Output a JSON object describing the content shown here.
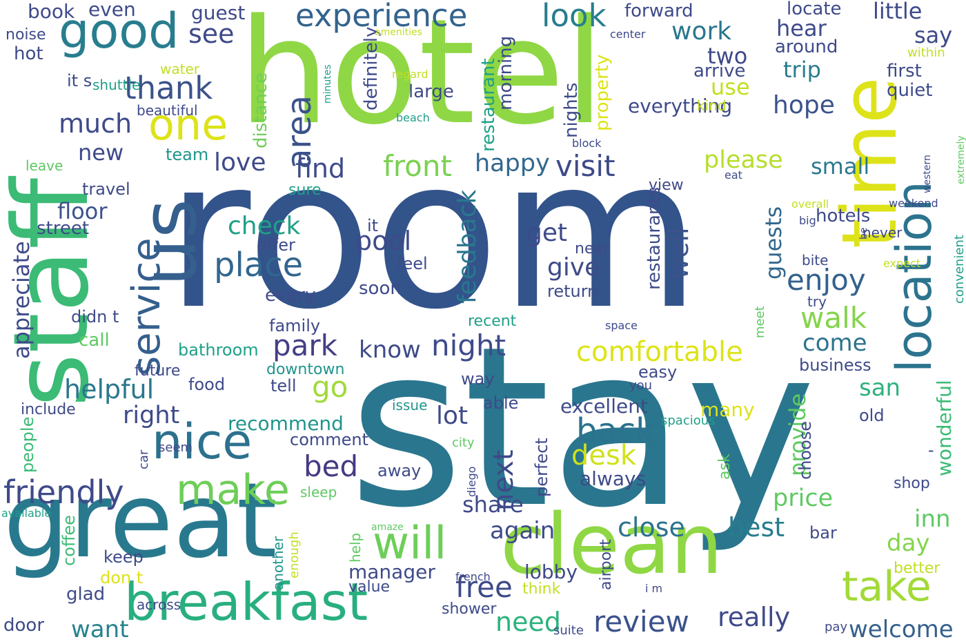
{
  "words": [
    {
      "text": "room",
      "color": "#33538b"
    },
    {
      "text": "stay",
      "color": "#2a768e"
    },
    {
      "text": "hotel",
      "color": "#8fd744"
    },
    {
      "text": "staff",
      "color": "#3bbb75"
    },
    {
      "text": "great",
      "color": "#29798e"
    },
    {
      "text": "clean",
      "color": "#8fd744"
    },
    {
      "text": "us",
      "color": "#355f8d"
    },
    {
      "text": "time",
      "color": "#dde318"
    },
    {
      "text": "breakfast",
      "color": "#29af7f"
    },
    {
      "text": "good",
      "color": "#287d8e"
    },
    {
      "text": "nice",
      "color": "#2c718e"
    },
    {
      "text": "location",
      "color": "#2c738e"
    },
    {
      "text": "service",
      "color": "#355f8d"
    },
    {
      "text": "will",
      "color": "#6ece58"
    },
    {
      "text": "make",
      "color": "#6ece58"
    },
    {
      "text": "take",
      "color": "#a2da37"
    },
    {
      "text": "one",
      "color": "#dde318"
    },
    {
      "text": "experience",
      "color": "#33638d"
    },
    {
      "text": "friendly",
      "color": "#3e4a89"
    },
    {
      "text": "thank",
      "color": "#3b528b"
    },
    {
      "text": "look",
      "color": "#287d8e"
    },
    {
      "text": "area",
      "color": "#3b528b"
    },
    {
      "text": "place",
      "color": "#31668e"
    },
    {
      "text": "comfortable",
      "color": "#dde318"
    },
    {
      "text": "back",
      "color": "#2c728e"
    },
    {
      "text": "review",
      "color": "#3b528b"
    },
    {
      "text": "front",
      "color": "#7ad151"
    },
    {
      "text": "park",
      "color": "#433e85"
    },
    {
      "text": "free",
      "color": "#3e4a89"
    },
    {
      "text": "close",
      "color": "#2c728e"
    },
    {
      "text": "best",
      "color": "#287c8e"
    },
    {
      "text": "bed",
      "color": "#443a83"
    },
    {
      "text": "night",
      "color": "#3e4a89"
    },
    {
      "text": "walk",
      "color": "#84d44b"
    },
    {
      "text": "enjoy",
      "color": "#34618d"
    },
    {
      "text": "visit",
      "color": "#3e4989"
    },
    {
      "text": "really",
      "color": "#3e4a89"
    },
    {
      "text": "need",
      "color": "#2db27d"
    },
    {
      "text": "desk",
      "color": "#d0e11c"
    },
    {
      "text": "next",
      "color": "#3e4989"
    },
    {
      "text": "see",
      "color": "#3e4a89"
    },
    {
      "text": "much",
      "color": "#3e4a89"
    },
    {
      "text": "find",
      "color": "#3e4a89"
    },
    {
      "text": "pool",
      "color": "#3e4a89"
    },
    {
      "text": "well",
      "color": "#3b528b"
    },
    {
      "text": "go",
      "color": "#a0da39"
    },
    {
      "text": "helpful",
      "color": "#2a788e"
    },
    {
      "text": "happy",
      "color": "#31688e"
    },
    {
      "text": "please",
      "color": "#b5de2b"
    },
    {
      "text": "price",
      "color": "#5ec962"
    },
    {
      "text": "welcome",
      "color": "#35608d"
    },
    {
      "text": "work",
      "color": "#2a768e"
    },
    {
      "text": "hope",
      "color": "#3b528b"
    },
    {
      "text": "feedback",
      "color": "#2a778e"
    },
    {
      "text": "check",
      "color": "#1fa088"
    },
    {
      "text": "give",
      "color": "#3e4a89"
    },
    {
      "text": "get",
      "color": "#3e4a89"
    },
    {
      "text": "love",
      "color": "#3e4a89"
    },
    {
      "text": "again",
      "color": "#3e4a89"
    },
    {
      "text": "lot",
      "color": "#3e4a89"
    },
    {
      "text": "right",
      "color": "#3e4a89"
    },
    {
      "text": "want",
      "color": "#26828e"
    },
    {
      "text": "know",
      "color": "#3e4a89"
    },
    {
      "text": "come",
      "color": "#2c728e"
    },
    {
      "text": "day",
      "color": "#84d44b"
    },
    {
      "text": "inn",
      "color": "#5ec962"
    },
    {
      "text": "san",
      "color": "#2db27d"
    },
    {
      "text": "small",
      "color": "#2a788e"
    },
    {
      "text": "new",
      "color": "#3e4a89"
    },
    {
      "text": "floor",
      "color": "#3b528b"
    },
    {
      "text": "appreciate",
      "color": "#3e4a89"
    },
    {
      "text": "use",
      "color": "#c2df23"
    },
    {
      "text": "trip",
      "color": "#287c8e"
    },
    {
      "text": "two",
      "color": "#3e4a89"
    },
    {
      "text": "hear",
      "color": "#3e4a89"
    },
    {
      "text": "little",
      "color": "#3e4a89"
    },
    {
      "text": "say",
      "color": "#3e4a89"
    },
    {
      "text": "provide",
      "color": "#5ec962"
    },
    {
      "text": "guests",
      "color": "#31688e"
    },
    {
      "text": "share",
      "color": "#3e4a89"
    },
    {
      "text": "recommend",
      "color": "#1f958b"
    },
    {
      "text": "excellent",
      "color": "#3e4a89"
    },
    {
      "text": "everything",
      "color": "#3e4a89"
    },
    {
      "text": "many",
      "color": "#dde318"
    },
    {
      "text": "manager",
      "color": "#3e4a89"
    },
    {
      "text": "lobby",
      "color": "#3e4a89"
    },
    {
      "text": "always",
      "color": "#3e4a89"
    },
    {
      "text": "wonderful",
      "color": "#3bbb75"
    },
    {
      "text": "book",
      "color": "#3e4a89"
    },
    {
      "text": "even",
      "color": "#3e4a89"
    },
    {
      "text": "guest",
      "color": "#3e4a89"
    },
    {
      "text": "forward",
      "color": "#3e4a89"
    },
    {
      "text": "locate",
      "color": "#3e4a89"
    },
    {
      "text": "around",
      "color": "#3e4a89"
    },
    {
      "text": "first",
      "color": "#3e4a89"
    },
    {
      "text": "quiet",
      "color": "#3e4a89"
    },
    {
      "text": "arrive",
      "color": "#3e4a89"
    },
    {
      "text": "hotels",
      "color": "#3e4a89"
    },
    {
      "text": "restaurants",
      "color": "#3e4a89"
    },
    {
      "text": "definitely",
      "color": "#3e4a89"
    },
    {
      "text": "restaurant",
      "color": "#1fa088"
    },
    {
      "text": "morning",
      "color": "#3e4a89"
    },
    {
      "text": "large",
      "color": "#3e4a89"
    },
    {
      "text": "nights",
      "color": "#3e4a89"
    },
    {
      "text": "property",
      "color": "#dde318"
    },
    {
      "text": "distance",
      "color": "#6ece58"
    },
    {
      "text": "street",
      "color": "#3e4a89"
    },
    {
      "text": "offer",
      "color": "#3e4a89"
    },
    {
      "text": "feel",
      "color": "#3e4a89"
    },
    {
      "text": "soon",
      "color": "#3e4a89"
    },
    {
      "text": "every",
      "color": "#3e4a89"
    },
    {
      "text": "didn t",
      "color": "#3e4a89"
    },
    {
      "text": "family",
      "color": "#3e4a89"
    },
    {
      "text": "call",
      "color": "#5ec962"
    },
    {
      "text": "bathroom",
      "color": "#1fa088"
    },
    {
      "text": "downtown",
      "color": "#1f958b"
    },
    {
      "text": "future",
      "color": "#3e4a89"
    },
    {
      "text": "food",
      "color": "#3e4a89"
    },
    {
      "text": "tell",
      "color": "#3e4a89"
    },
    {
      "text": "include",
      "color": "#3e4a89"
    },
    {
      "text": "people",
      "color": "#3bbb75"
    },
    {
      "text": "car",
      "color": "#3e4a89"
    },
    {
      "text": "seem",
      "color": "#3e4a89"
    },
    {
      "text": "comment",
      "color": "#3e4a89"
    },
    {
      "text": "recent",
      "color": "#1fa088"
    },
    {
      "text": "way",
      "color": "#3e4a89"
    },
    {
      "text": "easy",
      "color": "#3e4a89"
    },
    {
      "text": "able",
      "color": "#3e4a89"
    },
    {
      "text": "perfect",
      "color": "#3e4a89"
    },
    {
      "text": "away",
      "color": "#3e4a89"
    },
    {
      "text": "return",
      "color": "#3e4a89"
    },
    {
      "text": "near",
      "color": "#3e4a89"
    },
    {
      "text": "it",
      "color": "#3e4a89"
    },
    {
      "text": "it s",
      "color": "#3e4a89"
    },
    {
      "text": "noise",
      "color": "#3e4a89"
    },
    {
      "text": "hot",
      "color": "#3e4a89"
    },
    {
      "text": "shuttle",
      "color": "#1fa088"
    },
    {
      "text": "water",
      "color": "#c2df23"
    },
    {
      "text": "beautiful",
      "color": "#3e4a89"
    },
    {
      "text": "leave",
      "color": "#5ec962"
    },
    {
      "text": "team",
      "color": "#1f958b"
    },
    {
      "text": "travel",
      "color": "#3e4a89"
    },
    {
      "text": "sure",
      "color": "#1fa088"
    },
    {
      "text": "view",
      "color": "#3e4a89"
    },
    {
      "text": "kind",
      "color": "#c2df23"
    },
    {
      "text": "business",
      "color": "#3e4a89"
    },
    {
      "text": "choose",
      "color": "#3e4a89"
    },
    {
      "text": "ask",
      "color": "#5ec962"
    },
    {
      "text": "shop",
      "color": "#3e4a89"
    },
    {
      "text": "old",
      "color": "#3e4a89"
    },
    {
      "text": "bar",
      "color": "#3e4a89"
    },
    {
      "text": "better",
      "color": "#c2df23"
    },
    {
      "text": "suite",
      "color": "#3e4a89"
    },
    {
      "text": "pay",
      "color": "#3e4a89"
    },
    {
      "text": "i m",
      "color": "#3e4a89"
    },
    {
      "text": "think",
      "color": "#c2df23"
    },
    {
      "text": "french",
      "color": "#3e4a89"
    },
    {
      "text": "airport",
      "color": "#3e4a89"
    },
    {
      "text": "help",
      "color": "#5ec962"
    },
    {
      "text": "another",
      "color": "#1f958b"
    },
    {
      "text": "enough",
      "color": "#c2df23"
    },
    {
      "text": "amaze",
      "color": "#5ec962"
    },
    {
      "text": "diego",
      "color": "#3e4a89"
    },
    {
      "text": "city",
      "color": "#5ec962"
    },
    {
      "text": "issue",
      "color": "#1f958b"
    },
    {
      "text": "spacious",
      "color": "#1fa088"
    },
    {
      "text": "you",
      "color": "#3e4a89"
    },
    {
      "text": "space",
      "color": "#3e4a89"
    },
    {
      "text": "meet",
      "color": "#5ec962"
    },
    {
      "text": "coffee",
      "color": "#3bbb75"
    },
    {
      "text": "keep",
      "color": "#3e4a89"
    },
    {
      "text": "don t",
      "color": "#dde318"
    },
    {
      "text": "glad",
      "color": "#3e4a89"
    },
    {
      "text": "across",
      "color": "#3e4a89"
    },
    {
      "text": "door",
      "color": "#3e4a89"
    },
    {
      "text": "value",
      "color": "#3e4a89"
    },
    {
      "text": "shower",
      "color": "#3e4a89"
    },
    {
      "text": "sleep",
      "color": "#5ec962"
    },
    {
      "text": "available",
      "color": "#1fa088"
    },
    {
      "text": "amenities",
      "color": "#c2df23"
    },
    {
      "text": "regard",
      "color": "#c2df23"
    },
    {
      "text": "beach",
      "color": "#1fa088"
    },
    {
      "text": "minutes",
      "color": "#1fa088"
    },
    {
      "text": "block",
      "color": "#3e4a89"
    },
    {
      "text": "center",
      "color": "#3e4a89"
    },
    {
      "text": "western",
      "color": "#3e4a89"
    },
    {
      "text": "within",
      "color": "#c2df23"
    },
    {
      "text": "extremely",
      "color": "#5ec962"
    },
    {
      "text": "eat",
      "color": "#3e4a89"
    },
    {
      "text": "overall",
      "color": "#c2df23"
    },
    {
      "text": "weekend",
      "color": "#3e4a89"
    },
    {
      "text": "big",
      "color": "#3e4a89"
    },
    {
      "text": "be",
      "color": "#3e4a89"
    },
    {
      "text": "bite",
      "color": "#3e4a89"
    },
    {
      "text": "expect",
      "color": "#c2df23"
    },
    {
      "text": "try",
      "color": "#3e4a89"
    },
    {
      "text": "convenient",
      "color": "#1fa088"
    },
    {
      "text": "never",
      "color": "#3e4a89"
    },
    {
      "text": "-",
      "color": "#3e4a89"
    }
  ]
}
